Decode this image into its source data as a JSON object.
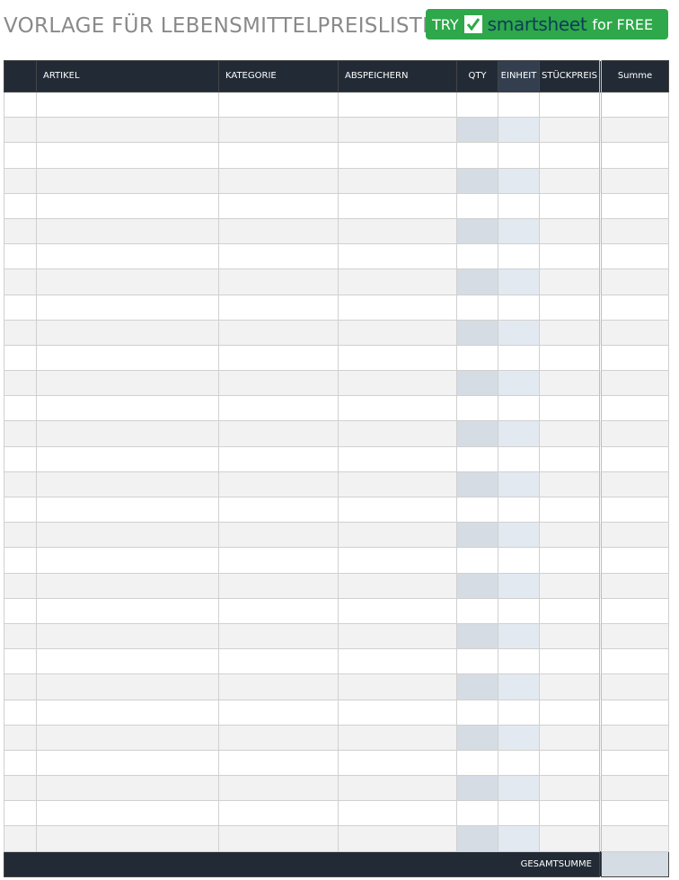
{
  "header": {
    "title": "VORLAGE FÜR LEBENSMITTELPREISLISTE"
  },
  "button": {
    "try": "TRY",
    "brand": "smartsheet",
    "cta": "for FREE"
  },
  "table": {
    "columns": [
      "ARTIKEL",
      "KATEGORIE",
      "ABSPEICHERN",
      "QTY",
      "EINHEIT",
      "STÜCKPREIS",
      "Summe"
    ],
    "footer": "GESAMTSUMME"
  }
}
